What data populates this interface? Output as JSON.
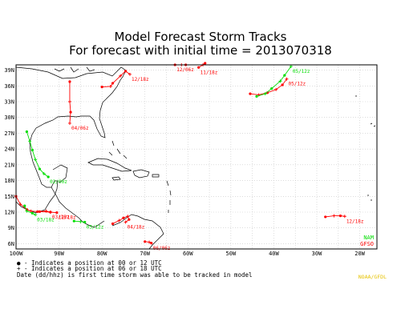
{
  "title": "Model Forecast Storm Tracks",
  "subtitle": "For forecast with initial time = 2013070318",
  "lat_labels": [
    "6N",
    "9N",
    "12N",
    "15N",
    "18N",
    "21N",
    "24N",
    "27N",
    "30N",
    "33N",
    "36N",
    "39N"
  ],
  "lon_labels": [
    "100W",
    "90W",
    "80W",
    "70W",
    "60W",
    "50W",
    "40W",
    "30W",
    "20W"
  ],
  "model_legend": [
    {
      "name": "NAM",
      "color": "#00dd00"
    },
    {
      "name": "GFSO",
      "color": "#ff0000"
    }
  ],
  "legend_lines": [
    "● - Indicates a position at 00 or 12 UTC",
    "+ - Indicates a position at 06 or 18 UTC",
    "Date (dd/hhz) is first time storm was able to be tracked in model"
  ],
  "credit": "NOAA/GFDL",
  "colors": {
    "nam": "#00dd00",
    "gfso": "#ff0000",
    "land": "#000000",
    "grid": "#c8c8c8"
  },
  "chart_data": {
    "type": "map",
    "projection": "equirectangular",
    "lon_range": [
      -100,
      -16
    ],
    "lat_range": [
      5,
      40
    ],
    "grid": true,
    "legend_placement": "bottom-right",
    "series": [
      {
        "name": "GFSO",
        "tracks": [
          {
            "label": "12/06z",
            "points": [
              [
                -63,
                40
              ],
              [
                -61.5,
                40
              ],
              [
                -60.5,
                40
              ]
            ]
          },
          {
            "label": "11/18z",
            "points": [
              [
                -57.5,
                39.5
              ],
              [
                -56.5,
                40
              ],
              [
                -56,
                40.3
              ]
            ]
          },
          {
            "label": "12/18z",
            "points": [
              [
                -80,
                35.8
              ],
              [
                -78,
                35.9
              ],
              [
                -77.5,
                36.5
              ],
              [
                -75.7,
                37.9
              ],
              [
                -74.5,
                38.8
              ],
              [
                -73.5,
                38.2
              ]
            ]
          },
          {
            "label": "04/06z",
            "points": [
              [
                -87.5,
                36.8
              ],
              [
                -87.5,
                33
              ],
              [
                -87.3,
                31
              ],
              [
                -87.5,
                28.9
              ]
            ]
          },
          {
            "label": "05/12z",
            "points": [
              [
                -45.5,
                34.5
              ],
              [
                -43.5,
                34.3
              ],
              [
                -41.5,
                34.7
              ],
              [
                -39.5,
                35.3
              ],
              [
                -38,
                36.2
              ],
              [
                -37,
                37.3
              ]
            ]
          },
          {
            "label": "03/18z",
            "points": [
              [
                -100,
                15
              ],
              [
                -99,
                13.5
              ],
              [
                -97.5,
                12.5
              ],
              [
                -96.5,
                12.2
              ],
              [
                -95,
                12.1
              ],
              [
                -93,
                12.2
              ],
              [
                -92,
                12
              ]
            ]
          },
          {
            "label": "12/18z",
            "points": [
              [
                -94.5,
                12.1
              ],
              [
                -92,
                12
              ],
              [
                -90.5,
                11.9
              ]
            ]
          },
          {
            "label": "04/18z",
            "points": [
              [
                -77.5,
                9.8
              ],
              [
                -76,
                10.4
              ],
              [
                -75,
                10.9
              ],
              [
                -74,
                11.2
              ],
              [
                -73.7,
                10.6
              ],
              [
                -74.5,
                10.1
              ]
            ]
          },
          {
            "label": "06/06z",
            "points": [
              [
                -70,
                6.4
              ],
              [
                -69,
                6.3
              ],
              [
                -68.5,
                6.1
              ]
            ]
          },
          {
            "label": "12/18z",
            "points": [
              [
                -28,
                11.1
              ],
              [
                -26,
                11.3
              ],
              [
                -24.5,
                11.3
              ],
              [
                -23.5,
                11.2
              ]
            ]
          }
        ]
      },
      {
        "name": "NAM",
        "tracks": [
          {
            "label": "02/00z",
            "points": [
              [
                -97.5,
                27.3
              ],
              [
                -96.8,
                25.5
              ],
              [
                -96.2,
                23.8
              ],
              [
                -95.5,
                22
              ],
              [
                -94.5,
                20.2
              ],
              [
                -93.5,
                19.3
              ],
              [
                -92.5,
                18.7
              ]
            ]
          },
          {
            "label": "03/18z",
            "points": [
              [
                -98,
                13.2
              ],
              [
                -97.5,
                12.2
              ],
              [
                -96.2,
                11.8
              ],
              [
                -95.5,
                11.5
              ]
            ]
          },
          {
            "label": "03/12z",
            "points": [
              [
                -86.5,
                10.3
              ],
              [
                -85,
                10.2
              ],
              [
                -84,
                10.1
              ]
            ]
          },
          {
            "label": "05/12z",
            "points": [
              [
                -44,
                34
              ],
              [
                -42,
                34.5
              ],
              [
                -40.5,
                35.5
              ],
              [
                -38.5,
                36.9
              ],
              [
                -37.5,
                38
              ],
              [
                -36,
                39.7
              ]
            ]
          }
        ]
      }
    ]
  }
}
